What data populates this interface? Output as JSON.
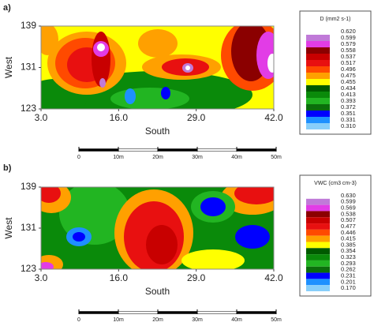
{
  "chart_data": [
    {
      "type": "contour",
      "panel_label": "a)",
      "xlabel": "South",
      "ylabel": "West",
      "xlim": [
        3,
        42
      ],
      "ylim": [
        123,
        139
      ],
      "xticks": [
        {
          "value": 3,
          "label": "3.0"
        },
        {
          "value": 16,
          "label": "16.0"
        },
        {
          "value": 29,
          "label": "29.0"
        },
        {
          "value": 42,
          "label": "42.0"
        }
      ],
      "yticks": [
        123,
        131,
        139
      ],
      "colorbar": {
        "title": "D (mm2 s-1)",
        "levels": [
          {
            "value": 0.62,
            "label": "0.620"
          },
          {
            "value": 0.599,
            "label": "0.599"
          },
          {
            "value": 0.579,
            "label": "0.579"
          },
          {
            "value": 0.558,
            "label": "0.558"
          },
          {
            "value": 0.537,
            "label": "0.537"
          },
          {
            "value": 0.517,
            "label": "0.517"
          },
          {
            "value": 0.496,
            "label": "0.496"
          },
          {
            "value": 0.475,
            "label": "0.475"
          },
          {
            "value": 0.455,
            "label": "0.455"
          },
          {
            "value": 0.434,
            "label": "0.434"
          },
          {
            "value": 0.413,
            "label": "0.413"
          },
          {
            "value": 0.393,
            "label": "0.393"
          },
          {
            "value": 0.372,
            "label": "0.372"
          },
          {
            "value": 0.351,
            "label": "0.351"
          },
          {
            "value": 0.331,
            "label": "0.331"
          },
          {
            "value": 0.31,
            "label": "0.310"
          }
        ],
        "colors": [
          "#ffffff",
          "#c07ad8",
          "#e23ce6",
          "#8b0000",
          "#c80000",
          "#e81010",
          "#ff4a00",
          "#ffa000",
          "#ffff00",
          "#005a00",
          "#0a8a0a",
          "#22b522",
          "#0b6e0b",
          "#0000ff",
          "#1e90ff",
          "#87cefa"
        ]
      },
      "scale_bar": [
        {
          "value": 0,
          "label": "0"
        },
        {
          "value": 10,
          "label": "10m"
        },
        {
          "value": 20,
          "label": "20m"
        },
        {
          "value": 30,
          "label": "30m"
        },
        {
          "value": 40,
          "label": "40m"
        },
        {
          "value": 50,
          "label": "50m"
        }
      ]
    },
    {
      "type": "contour",
      "panel_label": "b)",
      "xlabel": "South",
      "ylabel": "West",
      "xlim": [
        3,
        42
      ],
      "ylim": [
        123,
        139
      ],
      "xticks": [
        {
          "value": 3,
          "label": "3.0"
        },
        {
          "value": 16,
          "label": "16.0"
        },
        {
          "value": 29,
          "label": "29.0"
        },
        {
          "value": 42,
          "label": "42.0"
        }
      ],
      "yticks": [
        123,
        131,
        139
      ],
      "colorbar": {
        "title": "VWC (cm3 cm-3)",
        "levels": [
          {
            "value": 0.63,
            "label": "0.630"
          },
          {
            "value": 0.599,
            "label": "0.599"
          },
          {
            "value": 0.569,
            "label": "0.569"
          },
          {
            "value": 0.538,
            "label": "0.538"
          },
          {
            "value": 0.507,
            "label": "0.507"
          },
          {
            "value": 0.477,
            "label": "0.477"
          },
          {
            "value": 0.446,
            "label": "0.446"
          },
          {
            "value": 0.415,
            "label": "0.415"
          },
          {
            "value": 0.385,
            "label": "0.385"
          },
          {
            "value": 0.354,
            "label": "0.354"
          },
          {
            "value": 0.323,
            "label": "0.323"
          },
          {
            "value": 0.293,
            "label": "0.293"
          },
          {
            "value": 0.262,
            "label": "0.262"
          },
          {
            "value": 0.231,
            "label": "0.231"
          },
          {
            "value": 0.201,
            "label": "0.201"
          },
          {
            "value": 0.17,
            "label": "0.170"
          }
        ],
        "colors": [
          "#ffffff",
          "#c07ad8",
          "#e23ce6",
          "#8b0000",
          "#c80000",
          "#e81010",
          "#ff4a00",
          "#ffa000",
          "#ffff00",
          "#005a00",
          "#0a8a0a",
          "#22b522",
          "#0b6e0b",
          "#0000ff",
          "#1e90ff",
          "#87cefa"
        ]
      },
      "scale_bar": [
        {
          "value": 0,
          "label": "0"
        },
        {
          "value": 10,
          "label": "10m"
        },
        {
          "value": 20,
          "label": "20m"
        },
        {
          "value": 30,
          "label": "30m"
        },
        {
          "value": 40,
          "label": "40m"
        },
        {
          "value": 50,
          "label": "50m"
        }
      ]
    }
  ]
}
